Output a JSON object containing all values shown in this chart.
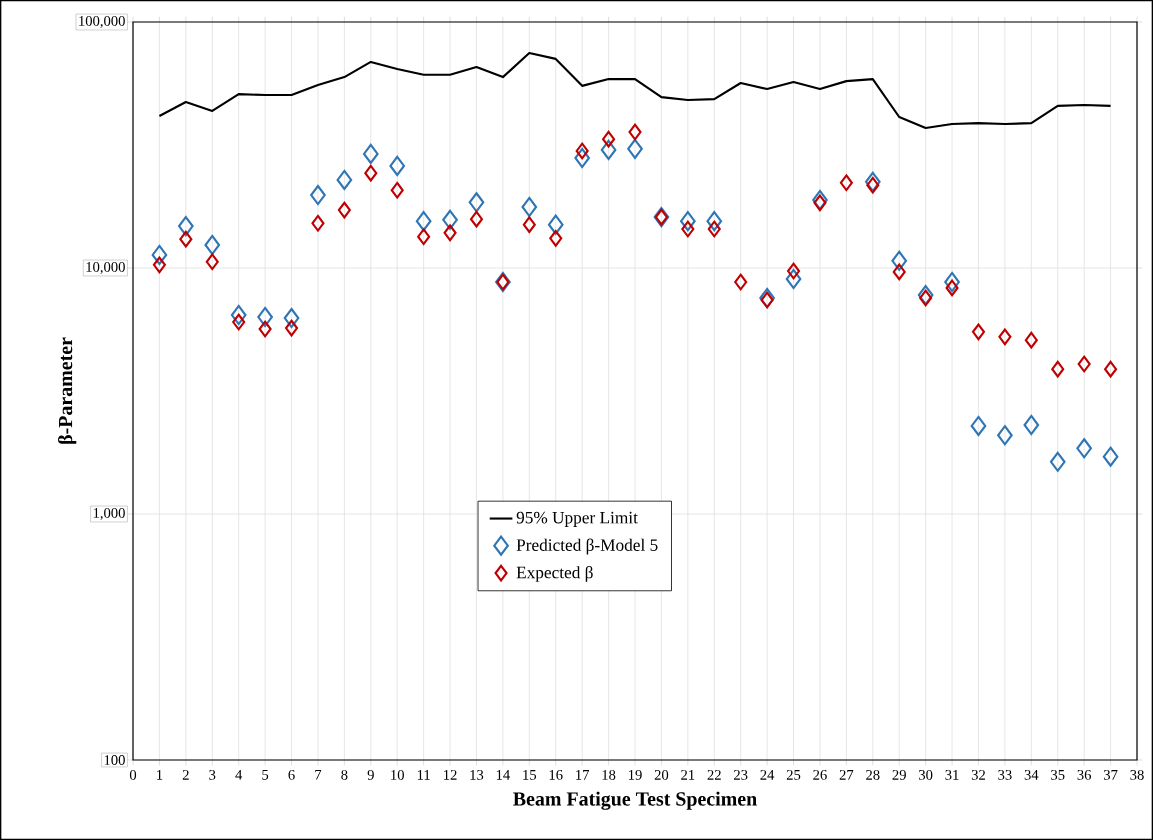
{
  "chart_data": {
    "type": "scatter",
    "xlabel": "Beam Fatigue Test Specimen",
    "ylabel": "β-Parameter",
    "x": [
      1,
      2,
      3,
      4,
      5,
      6,
      7,
      8,
      9,
      10,
      11,
      12,
      13,
      14,
      15,
      16,
      17,
      18,
      19,
      20,
      21,
      22,
      23,
      24,
      25,
      26,
      27,
      28,
      29,
      30,
      31,
      32,
      33,
      34,
      35,
      36,
      37
    ],
    "xlim": [
      0,
      38
    ],
    "xticks": [
      0,
      1,
      2,
      3,
      4,
      5,
      6,
      7,
      8,
      9,
      10,
      11,
      12,
      13,
      14,
      15,
      16,
      17,
      18,
      19,
      20,
      21,
      22,
      23,
      24,
      25,
      26,
      27,
      28,
      29,
      30,
      31,
      32,
      33,
      34,
      35,
      36,
      37,
      38
    ],
    "log": "y",
    "ylim": [
      100,
      100000
    ],
    "yticks": [
      {
        "value": 100,
        "label": "100"
      },
      {
        "value": 1000,
        "label": "1,000"
      },
      {
        "value": 10000,
        "label": "10,000"
      },
      {
        "value": 100000,
        "label": "100,000"
      }
    ],
    "grid": true,
    "legend": "center",
    "series": [
      {
        "name": "95% Upper Limit",
        "type": "line",
        "color": "#000000",
        "marker": "none",
        "line_style": "solid",
        "values": [
          41500,
          47300,
          43500,
          50900,
          50500,
          50500,
          55500,
          59700,
          68800,
          64400,
          61000,
          61000,
          65600,
          59700,
          74800,
          70800,
          55000,
          58600,
          58600,
          49500,
          48200,
          48600,
          56500,
          53400,
          57000,
          53400,
          57500,
          58600,
          41100,
          37100,
          38500,
          38800,
          38500,
          38800,
          45600,
          46000,
          45600
        ]
      },
      {
        "name": "Predicted β-Model 5",
        "color": "#2e75b6",
        "marker": "diamond",
        "values": [
          11300,
          14800,
          12400,
          6440,
          6320,
          6260,
          19800,
          22800,
          29100,
          26000,
          15500,
          15700,
          18500,
          8770,
          17700,
          15000,
          28000,
          30200,
          30500,
          16100,
          15500,
          15500,
          null,
          7550,
          9020,
          18900,
          null,
          22400,
          10700,
          7760,
          8770,
          2280,
          2090,
          2300,
          1630,
          1850,
          1710
        ]
      },
      {
        "name": "Expected β",
        "color": "#c00000",
        "marker": "diamond",
        "values": [
          10300,
          13100,
          10600,
          6030,
          5650,
          5700,
          15200,
          17200,
          24300,
          20700,
          13400,
          13900,
          15800,
          8770,
          15000,
          13200,
          29900,
          33400,
          35700,
          16100,
          14400,
          14400,
          8770,
          7410,
          9720,
          18400,
          22200,
          21700,
          9640,
          7550,
          8300,
          5500,
          5250,
          5090,
          3880,
          4070,
          3880
        ]
      }
    ]
  }
}
